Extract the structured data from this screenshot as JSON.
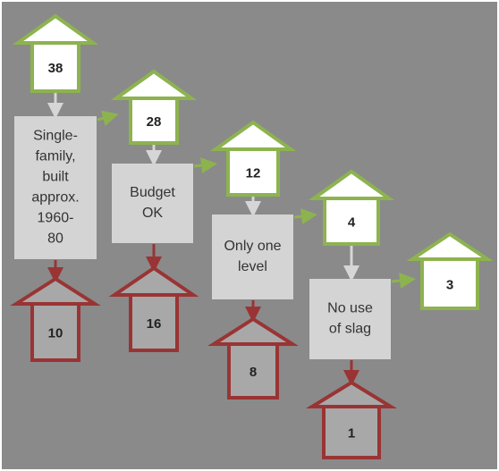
{
  "houses_remaining": [
    "38",
    "28",
    "12",
    "4",
    "3"
  ],
  "houses_excluded": [
    "10",
    "16",
    "8",
    "1"
  ],
  "criteria": [
    [
      "Single-",
      "family,",
      "built",
      "approx.",
      "1960-",
      "80"
    ],
    [
      "Budget",
      "OK"
    ],
    [
      "Only one",
      "level"
    ],
    [
      "No use",
      "of slag"
    ]
  ]
}
